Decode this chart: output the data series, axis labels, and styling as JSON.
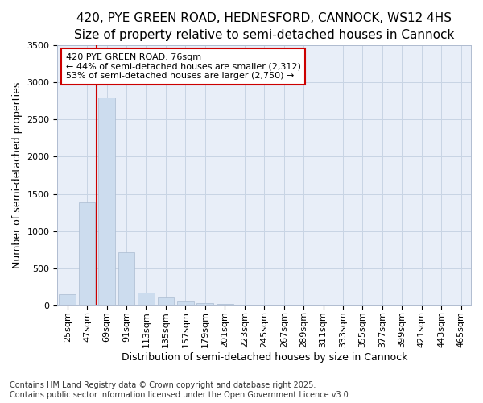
{
  "title_line1": "420, PYE GREEN ROAD, HEDNESFORD, CANNOCK, WS12 4HS",
  "title_line2": "Size of property relative to semi-detached houses in Cannock",
  "xlabel": "Distribution of semi-detached houses by size in Cannock",
  "ylabel": "Number of semi-detached properties",
  "categories": [
    "25sqm",
    "47sqm",
    "69sqm",
    "91sqm",
    "113sqm",
    "135sqm",
    "157sqm",
    "179sqm",
    "201sqm",
    "223sqm",
    "245sqm",
    "267sqm",
    "289sqm",
    "311sqm",
    "333sqm",
    "355sqm",
    "377sqm",
    "399sqm",
    "421sqm",
    "443sqm",
    "465sqm"
  ],
  "values": [
    150,
    1390,
    2800,
    710,
    165,
    110,
    50,
    30,
    15,
    0,
    0,
    0,
    0,
    0,
    0,
    0,
    0,
    0,
    0,
    0,
    0
  ],
  "bar_color": "#ccdcee",
  "bar_edgecolor": "#aabbd0",
  "vline_color": "#cc0000",
  "vline_x": 1.5,
  "annotation_text": "420 PYE GREEN ROAD: 76sqm\n← 44% of semi-detached houses are smaller (2,312)\n53% of semi-detached houses are larger (2,750) →",
  "annotation_box_facecolor": "#ffffff",
  "annotation_box_edgecolor": "#cc0000",
  "ylim": [
    0,
    3500
  ],
  "yticks": [
    0,
    500,
    1000,
    1500,
    2000,
    2500,
    3000,
    3500
  ],
  "grid_color": "#c8d4e4",
  "background_color": "#e8eef8",
  "footer_line1": "Contains HM Land Registry data © Crown copyright and database right 2025.",
  "footer_line2": "Contains public sector information licensed under the Open Government Licence v3.0.",
  "title1_fontsize": 11,
  "title2_fontsize": 10,
  "axis_label_fontsize": 9,
  "tick_fontsize": 8,
  "annotation_fontsize": 8,
  "footer_fontsize": 7
}
